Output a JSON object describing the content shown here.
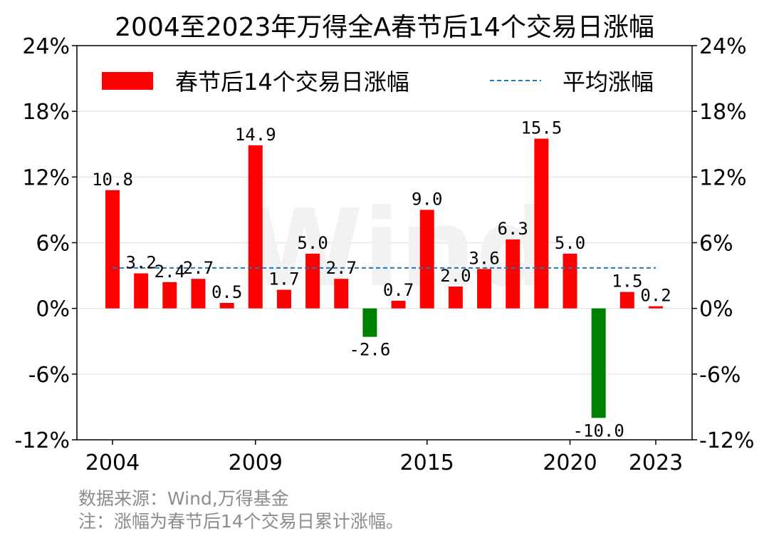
{
  "chart_data": {
    "type": "bar",
    "title": "2004至2023年万得全A春节后14个交易日涨幅",
    "categories": [
      "2004",
      "2005",
      "2006",
      "2007",
      "2008",
      "2009",
      "2010",
      "2011",
      "2012",
      "2013",
      "2014",
      "2015",
      "2016",
      "2017",
      "2018",
      "2019",
      "2020",
      "2021",
      "2022",
      "2023"
    ],
    "series": [
      {
        "name": "春节后14个交易日涨幅",
        "values": [
          10.8,
          3.2,
          2.4,
          2.7,
          0.5,
          14.9,
          1.7,
          5.0,
          2.7,
          -2.6,
          0.7,
          9.0,
          2.0,
          3.6,
          6.3,
          15.5,
          5.0,
          -10.0,
          1.5,
          0.2
        ],
        "data_labels": [
          "10.8",
          "3.2",
          "2.4",
          "2.7",
          "0.5",
          "14.9",
          "1.7",
          "5.0",
          "2.7",
          "-2.6",
          "0.7",
          "9.0",
          "2.0",
          "3.6",
          "6.3",
          "15.5",
          "5.0",
          "-10.0",
          "1.5",
          "0.2"
        ]
      }
    ],
    "average": {
      "name": "平均涨幅",
      "value": 3.7
    },
    "x_tick_labels": [
      "2004",
      "2009",
      "2015",
      "2020",
      "2023"
    ],
    "x_tick_categories": [
      "2004",
      "2009",
      "2015",
      "2020",
      "2023"
    ],
    "y_ticks": [
      24,
      18,
      12,
      6,
      0,
      -6,
      -12
    ],
    "y_tick_labels": [
      "24%",
      "18%",
      "12%",
      "6%",
      "0%",
      "-6%",
      "-12%"
    ],
    "ylim": [
      -12,
      24
    ],
    "xlabel": "",
    "ylabel": "",
    "grid": "horizontal",
    "legend_position": "top",
    "colors": {
      "positive": "#ff0000",
      "negative": "#008000",
      "average": "#1f77b4",
      "grid": "#e6e6e6"
    },
    "watermark": "Wind"
  },
  "footnotes": {
    "source": "数据来源：Wind,万得基金",
    "note": "注：涨幅为春节后14个交易日累计涨幅。"
  }
}
